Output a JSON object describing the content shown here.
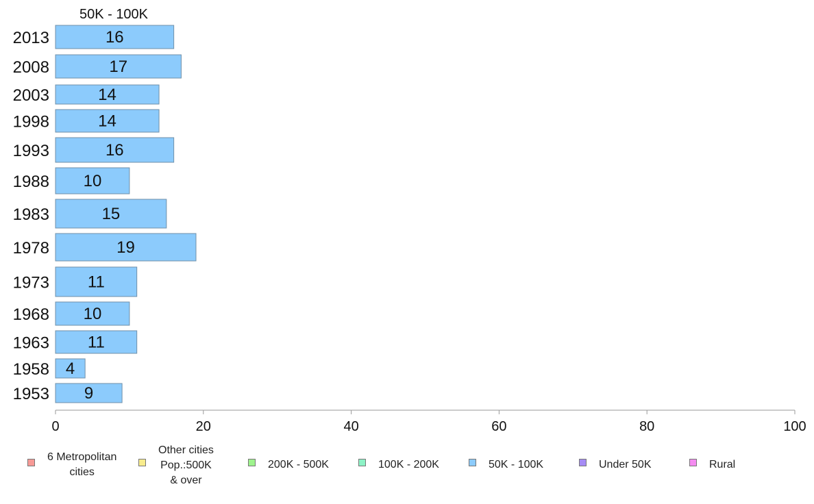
{
  "chart_data": {
    "type": "bar",
    "orientation": "horizontal",
    "title": "50K - 100K",
    "categories": [
      "2013",
      "2008",
      "2003",
      "1998",
      "1993",
      "1988",
      "1983",
      "1978",
      "1973",
      "1968",
      "1963",
      "1958",
      "1953"
    ],
    "values": [
      16,
      17,
      14,
      14,
      16,
      10,
      15,
      19,
      11,
      10,
      11,
      4,
      9
    ],
    "xlim": [
      0,
      100
    ],
    "xticks": [
      0,
      20,
      40,
      60,
      80,
      100
    ],
    "xlabel": "",
    "ylabel": "",
    "grid": false,
    "bar_color": "#8ccbfc",
    "legend_position": "bottom",
    "legend": [
      {
        "label": "6 Metropolitan\ncities",
        "color": "#f79a96"
      },
      {
        "label": "Other cities\nPop.:500K\n& over",
        "color": "#f8ec8d"
      },
      {
        "label": "200K - 500K",
        "color": "#9ef38d"
      },
      {
        "label": "100K - 200K",
        "color": "#8df2c6"
      },
      {
        "label": "50K - 100K",
        "color": "#8ccbfc"
      },
      {
        "label": "Under 50K",
        "color": "#a68cf5"
      },
      {
        "label": "Rural",
        "color": "#f48cf0"
      }
    ]
  }
}
